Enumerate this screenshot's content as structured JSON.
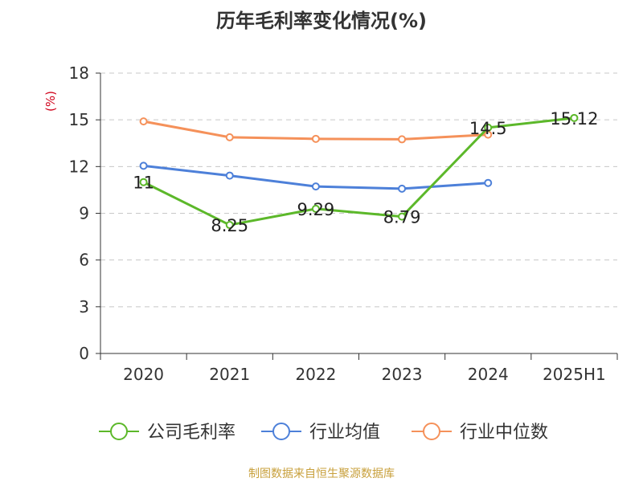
{
  "title": "历年毛利率变化情况(%)",
  "footer": "制图数据来自恒生聚源数据库",
  "chart_data": {
    "type": "line",
    "categories": [
      "2020",
      "2021",
      "2022",
      "2023",
      "2024",
      "2025H1"
    ],
    "ylabel": "(%)",
    "ylim": [
      0,
      18
    ],
    "yticks": [
      0,
      3,
      6,
      9,
      12,
      15,
      18
    ],
    "grid": true,
    "legend_position": "bottom",
    "series": [
      {
        "name": "公司毛利率",
        "color": "#5cb82a",
        "values": [
          11,
          8.25,
          9.29,
          8.79,
          14.5,
          15.12
        ],
        "labels": [
          "11",
          "8.25",
          "9.29",
          "8.79",
          "14.5",
          "15.12"
        ]
      },
      {
        "name": "行业均值",
        "color": "#4d80d9",
        "values": [
          12.05,
          11.42,
          10.72,
          10.58,
          10.95,
          null
        ]
      },
      {
        "name": "行业中位数",
        "color": "#f5915a",
        "values": [
          14.9,
          13.88,
          13.78,
          13.75,
          14.05,
          null
        ]
      }
    ]
  }
}
